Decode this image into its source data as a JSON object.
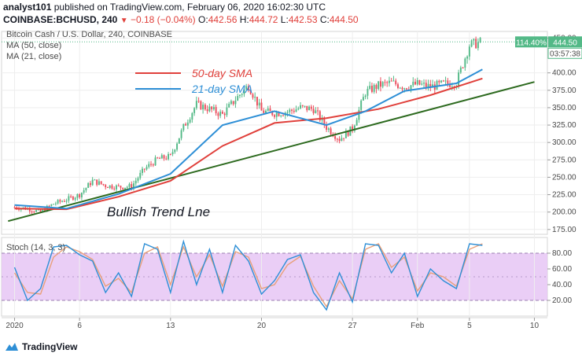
{
  "header": {
    "author": "analyst101",
    "published_text": "published on TradingView.com, February 06, 2020 16:02:30 UTC",
    "symbol": "COINBASE:BCHUSD, 240",
    "change": "−0.18 (−0.04%)",
    "ohlc": {
      "o_label": "O:",
      "o": "442.56",
      "h_label": "H:",
      "h": "444.72",
      "l_label": "L:",
      "l": "442.53",
      "c_label": "C:",
      "c": "444.50"
    }
  },
  "legend": {
    "title": "Bitcoin Cash / U.S. Dollar, 240, COINBASE",
    "ma50": "MA (50, close)",
    "ma21": "MA (21, close)",
    "stoch": "Stoch (14, 3, 3)"
  },
  "annotations": {
    "sma50": "50-day SMA",
    "sma21": "21-day SMA",
    "trend": "Bullish  Trend Lne"
  },
  "price_badges": {
    "percent": "114.40%",
    "price": "444.50",
    "countdown": "03:57:38"
  },
  "colors": {
    "up": "#53b987",
    "down": "#eb4d5c",
    "sma50": "#e0403b",
    "sma21": "#2e8fd6",
    "trend": "#2d6a1f",
    "stoch_k": "#2e8fd6",
    "stoch_d": "#e8a07a",
    "stoch_band": "#e6c6f5",
    "grid": "#eeeeee"
  },
  "footer": {
    "brand": "TradingView"
  },
  "chart_data": {
    "type": "candlestick",
    "title": "Bitcoin Cash / U.S. Dollar, 240, COINBASE",
    "price_axis": {
      "ticks": [
        "450.00",
        "400.00",
        "375.00",
        "350.00",
        "325.00",
        "300.00",
        "275.00",
        "250.00",
        "225.00",
        "200.00",
        "175.00"
      ],
      "range": [
        168,
        455
      ]
    },
    "stoch_axis": {
      "ticks": [
        "80.00",
        "60.00",
        "40.00",
        "20.00"
      ],
      "range": [
        0,
        100
      ],
      "band": [
        20,
        80
      ]
    },
    "x_axis": {
      "ticks": [
        "2020",
        "6",
        "13",
        "20",
        "27",
        "Feb",
        "5",
        "10"
      ],
      "tick_day": [
        0,
        5,
        12,
        19,
        26,
        31,
        35,
        40
      ],
      "range_days": [
        -1,
        41
      ]
    },
    "price_series_daily": [
      {
        "day": 0,
        "close": 207
      },
      {
        "day": 1,
        "close": 205
      },
      {
        "day": 2,
        "close": 200
      },
      {
        "day": 3,
        "close": 212
      },
      {
        "day": 4,
        "close": 218
      },
      {
        "day": 5,
        "close": 225
      },
      {
        "day": 6,
        "close": 245
      },
      {
        "day": 7,
        "close": 238
      },
      {
        "day": 8,
        "close": 236
      },
      {
        "day": 9,
        "close": 237
      },
      {
        "day": 10,
        "close": 262
      },
      {
        "day": 11,
        "close": 276
      },
      {
        "day": 12,
        "close": 280
      },
      {
        "day": 13,
        "close": 322
      },
      {
        "day": 14,
        "close": 355
      },
      {
        "day": 15,
        "close": 348
      },
      {
        "day": 16,
        "close": 340
      },
      {
        "day": 17,
        "close": 362
      },
      {
        "day": 18,
        "close": 382
      },
      {
        "day": 19,
        "close": 345
      },
      {
        "day": 20,
        "close": 342
      },
      {
        "day": 21,
        "close": 344
      },
      {
        "day": 22,
        "close": 350
      },
      {
        "day": 23,
        "close": 348
      },
      {
        "day": 24,
        "close": 322
      },
      {
        "day": 25,
        "close": 305
      },
      {
        "day": 26,
        "close": 320
      },
      {
        "day": 27,
        "close": 372
      },
      {
        "day": 28,
        "close": 382
      },
      {
        "day": 29,
        "close": 386
      },
      {
        "day": 30,
        "close": 380
      },
      {
        "day": 31,
        "close": 384
      },
      {
        "day": 32,
        "close": 380
      },
      {
        "day": 33,
        "close": 384
      },
      {
        "day": 34,
        "close": 386
      },
      {
        "day": 35,
        "close": 440
      },
      {
        "day": 36,
        "close": 444.5
      }
    ],
    "sma50": [
      {
        "day": 0,
        "value": 205
      },
      {
        "day": 4,
        "value": 204
      },
      {
        "day": 8,
        "value": 222
      },
      {
        "day": 12,
        "value": 245
      },
      {
        "day": 16,
        "value": 295
      },
      {
        "day": 20,
        "value": 328
      },
      {
        "day": 24,
        "value": 335
      },
      {
        "day": 28,
        "value": 348
      },
      {
        "day": 32,
        "value": 368
      },
      {
        "day": 36,
        "value": 392
      }
    ],
    "sma21": [
      {
        "day": 0,
        "value": 210
      },
      {
        "day": 4,
        "value": 205
      },
      {
        "day": 8,
        "value": 226
      },
      {
        "day": 12,
        "value": 255
      },
      {
        "day": 16,
        "value": 325
      },
      {
        "day": 20,
        "value": 345
      },
      {
        "day": 24,
        "value": 325
      },
      {
        "day": 27,
        "value": 345
      },
      {
        "day": 30,
        "value": 374
      },
      {
        "day": 34,
        "value": 385
      },
      {
        "day": 36,
        "value": 405
      }
    ],
    "trend_line": [
      {
        "day": -0.5,
        "value": 187
      },
      {
        "day": 40,
        "value": 387
      }
    ],
    "stoch_k": [
      {
        "day": 0,
        "value": 62
      },
      {
        "day": 1,
        "value": 20
      },
      {
        "day": 2,
        "value": 35
      },
      {
        "day": 3,
        "value": 88
      },
      {
        "day": 4,
        "value": 90
      },
      {
        "day": 5,
        "value": 78
      },
      {
        "day": 6,
        "value": 70
      },
      {
        "day": 7,
        "value": 30
      },
      {
        "day": 8,
        "value": 55
      },
      {
        "day": 9,
        "value": 25
      },
      {
        "day": 10,
        "value": 92
      },
      {
        "day": 11,
        "value": 85
      },
      {
        "day": 12,
        "value": 30
      },
      {
        "day": 13,
        "value": 95
      },
      {
        "day": 14,
        "value": 40
      },
      {
        "day": 15,
        "value": 85
      },
      {
        "day": 16,
        "value": 30
      },
      {
        "day": 17,
        "value": 90
      },
      {
        "day": 18,
        "value": 70
      },
      {
        "day": 19,
        "value": 28
      },
      {
        "day": 20,
        "value": 45
      },
      {
        "day": 21,
        "value": 72
      },
      {
        "day": 22,
        "value": 78
      },
      {
        "day": 23,
        "value": 30
      },
      {
        "day": 24,
        "value": 8
      },
      {
        "day": 25,
        "value": 55
      },
      {
        "day": 26,
        "value": 18
      },
      {
        "day": 27,
        "value": 92
      },
      {
        "day": 28,
        "value": 90
      },
      {
        "day": 29,
        "value": 55
      },
      {
        "day": 30,
        "value": 80
      },
      {
        "day": 31,
        "value": 25
      },
      {
        "day": 32,
        "value": 60
      },
      {
        "day": 33,
        "value": 45
      },
      {
        "day": 34,
        "value": 35
      },
      {
        "day": 35,
        "value": 92
      },
      {
        "day": 36,
        "value": 90
      }
    ],
    "stoch_d": [
      {
        "day": 0,
        "value": 55
      },
      {
        "day": 1,
        "value": 30
      },
      {
        "day": 2,
        "value": 28
      },
      {
        "day": 3,
        "value": 75
      },
      {
        "day": 4,
        "value": 88
      },
      {
        "day": 5,
        "value": 82
      },
      {
        "day": 6,
        "value": 72
      },
      {
        "day": 7,
        "value": 38
      },
      {
        "day": 8,
        "value": 48
      },
      {
        "day": 9,
        "value": 30
      },
      {
        "day": 10,
        "value": 80
      },
      {
        "day": 11,
        "value": 88
      },
      {
        "day": 12,
        "value": 40
      },
      {
        "day": 13,
        "value": 88
      },
      {
        "day": 14,
        "value": 50
      },
      {
        "day": 15,
        "value": 78
      },
      {
        "day": 16,
        "value": 38
      },
      {
        "day": 17,
        "value": 82
      },
      {
        "day": 18,
        "value": 75
      },
      {
        "day": 19,
        "value": 35
      },
      {
        "day": 20,
        "value": 40
      },
      {
        "day": 21,
        "value": 65
      },
      {
        "day": 22,
        "value": 76
      },
      {
        "day": 23,
        "value": 38
      },
      {
        "day": 24,
        "value": 12
      },
      {
        "day": 25,
        "value": 45
      },
      {
        "day": 26,
        "value": 22
      },
      {
        "day": 27,
        "value": 85
      },
      {
        "day": 28,
        "value": 92
      },
      {
        "day": 29,
        "value": 62
      },
      {
        "day": 30,
        "value": 75
      },
      {
        "day": 31,
        "value": 32
      },
      {
        "day": 32,
        "value": 55
      },
      {
        "day": 33,
        "value": 50
      },
      {
        "day": 34,
        "value": 38
      },
      {
        "day": 35,
        "value": 85
      },
      {
        "day": 36,
        "value": 92
      }
    ]
  }
}
